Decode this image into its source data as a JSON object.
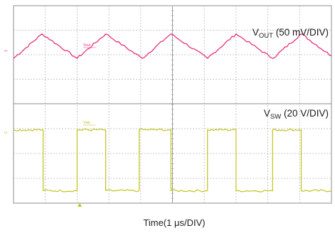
{
  "chart_data": {
    "type": "line",
    "xlabel": "Time(1 μs/DIV)",
    "x_divisions": 10,
    "x_unit": "μs",
    "x_range": [
      0,
      10
    ],
    "grid": true,
    "series": [
      {
        "name": "V_OUT (50 mV/DIV)",
        "label_main": "V",
        "label_sub": "OUT",
        "label_tail": " (50 mV/DIV)",
        "trace_tag": "Vout",
        "channel_marker": "1",
        "color": "#e8317c",
        "y_divisions_per_panel": 4,
        "y_range_div": [
          0,
          4
        ],
        "x": [
          0,
          0.9,
          2.0,
          2.9,
          4.05,
          4.95,
          6.1,
          7.0,
          8.15,
          9.05,
          10.0
        ],
        "y": [
          1.85,
          2.85,
          1.85,
          2.85,
          1.85,
          2.85,
          1.85,
          2.85,
          1.85,
          2.85,
          1.95
        ]
      },
      {
        "name": "V_SW (20 V/DIV)",
        "label_main": "V",
        "label_sub": "SW",
        "label_tail": " (20 V/DIV)",
        "trace_tag": "Vsw",
        "channel_marker": "2",
        "color": "#c4c21a",
        "y_divisions_per_panel": 4,
        "y_range_div": [
          0,
          4
        ],
        "x": [
          0,
          0.93,
          0.93,
          2.0,
          2.0,
          2.9,
          2.9,
          3.95,
          3.95,
          4.95,
          4.95,
          6.1,
          6.1,
          7.0,
          7.0,
          8.15,
          8.15,
          9.05,
          9.05,
          10.0
        ],
        "y": [
          2.95,
          2.95,
          0.5,
          0.5,
          2.95,
          2.95,
          0.5,
          0.5,
          2.95,
          2.95,
          0.5,
          0.5,
          2.95,
          2.95,
          0.5,
          0.5,
          2.95,
          2.95,
          0.5,
          0.5
        ]
      }
    ]
  }
}
